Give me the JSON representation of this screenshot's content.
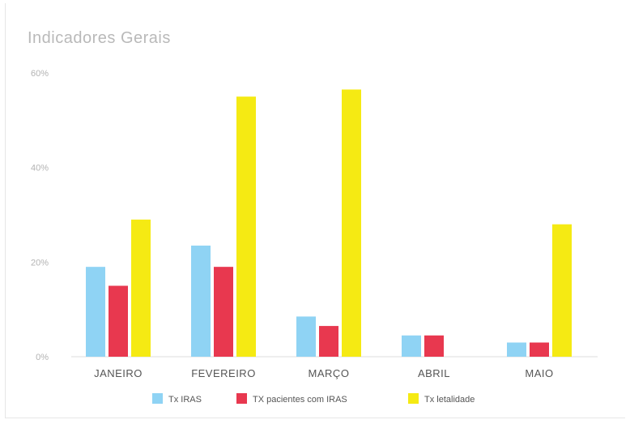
{
  "chart_data": {
    "type": "bar",
    "title": "Indicadores Gerais",
    "categories": [
      "JANEIRO",
      "FEVEREIRO",
      "MARÇO",
      "ABRIL",
      "MAIO"
    ],
    "series": [
      {
        "name": "Tx IRAS",
        "color": "#8fd3f4",
        "values": [
          19,
          23.5,
          8.5,
          4.5,
          3
        ]
      },
      {
        "name": "TX pacientes com IRAS",
        "color": "#e8384f",
        "values": [
          15,
          19,
          6.5,
          4.5,
          3
        ]
      },
      {
        "name": "Tx letalidade",
        "color": "#f5ea13",
        "values": [
          29,
          55,
          56.5,
          0,
          28
        ]
      }
    ],
    "yticks": [
      "0%",
      "20%",
      "40%",
      "60%"
    ],
    "ylim": [
      0,
      60
    ],
    "legend_position": "bottom",
    "grid": false
  }
}
